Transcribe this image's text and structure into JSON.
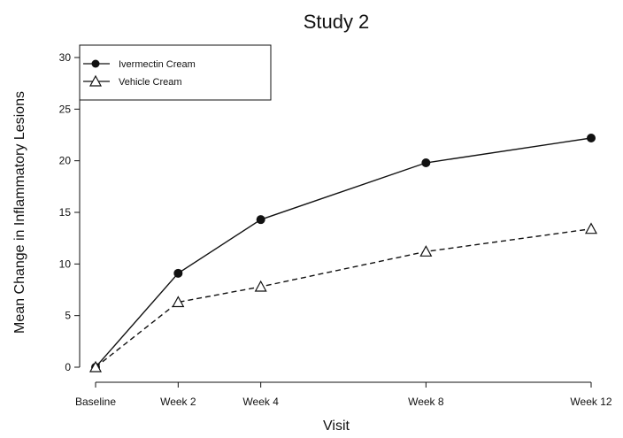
{
  "chart_data": {
    "type": "line",
    "title": "Study 2",
    "xlabel": "Visit",
    "ylabel": "Mean Change in Inflammatory Lesions",
    "x": [
      "Baseline",
      "Week 2",
      "Week 4",
      "Week 8",
      "Week 12"
    ],
    "x_week": [
      0,
      2,
      4,
      8,
      12
    ],
    "ylim": [
      0,
      30
    ],
    "yticks": [
      0,
      5,
      10,
      15,
      20,
      25,
      30
    ],
    "grid": false,
    "legend_position": "top-left",
    "series": [
      {
        "name": "Ivermectin Cream",
        "values": [
          0,
          9.1,
          14.3,
          19.8,
          22.2
        ],
        "marker": "filled-circle",
        "line_style": "solid",
        "color": "#111111"
      },
      {
        "name": "Vehicle Cream",
        "values": [
          0,
          6.3,
          7.8,
          11.2,
          13.4
        ],
        "marker": "open-triangle",
        "line_style": "dashed",
        "color": "#111111"
      }
    ]
  }
}
